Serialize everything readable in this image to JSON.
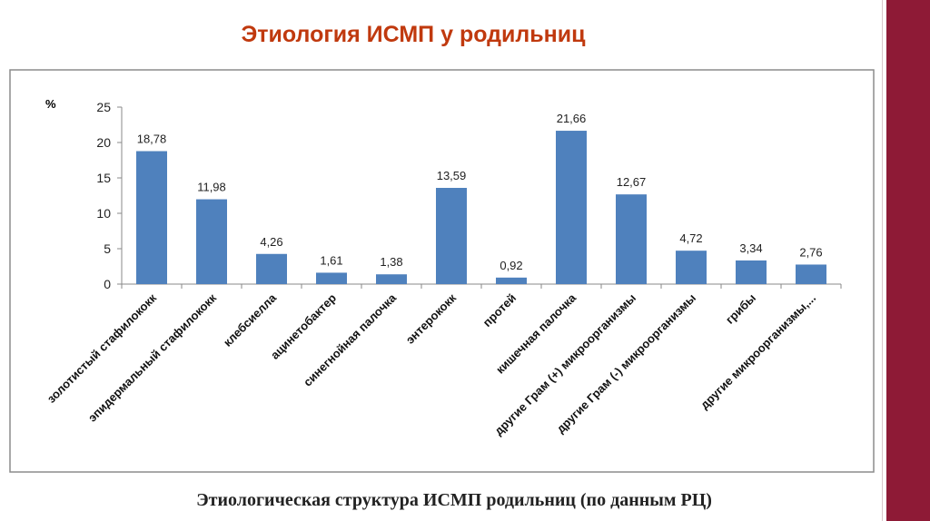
{
  "title": "Этиология ИСМП у родильниц",
  "caption": "Этиологическая структура ИСМП родильниц (по данным РЦ)",
  "chart_data": {
    "type": "bar",
    "ylabel": "%",
    "ylim": [
      0,
      25
    ],
    "yticks": [
      0,
      5,
      10,
      15,
      20,
      25
    ],
    "grid": false,
    "bar_color": "#4f81bd",
    "categories": [
      "золотистый стафилококк",
      "эпидермальный стафилококк",
      "клебсиелла",
      "ацинетобактер",
      "синегнойная палочка",
      "энтерококк",
      "протей",
      "кишечная палочка",
      "другие Грам (+) микроорганизмы",
      "другие Грам (-) микроорганизмы",
      "грибы",
      "другие микроорганизмы,..."
    ],
    "values": [
      18.78,
      11.98,
      4.26,
      1.61,
      1.38,
      13.59,
      0.92,
      21.66,
      12.67,
      4.72,
      3.34,
      2.76
    ],
    "data_labels": [
      "18,78",
      "11,98",
      "4,26",
      "1,61",
      "1,38",
      "13,59",
      "0,92",
      "21,66",
      "12,67",
      "4,72",
      "3,34",
      "2,76"
    ]
  },
  "colors": {
    "title": "#c0390e",
    "band": "#8e1a36"
  }
}
